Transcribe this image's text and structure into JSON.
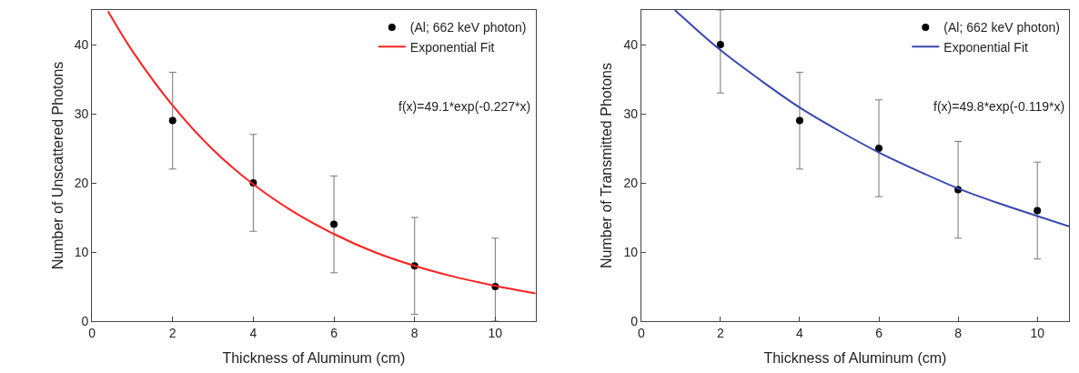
{
  "chart_data": [
    {
      "type": "scatter",
      "xlabel": "Thickness of Aluminum (cm)",
      "ylabel": "Number of Unscattered Photons",
      "xlim": [
        0,
        11
      ],
      "ylim": [
        0,
        45
      ],
      "xticks": [
        0,
        2,
        4,
        6,
        8,
        10
      ],
      "yticks": [
        0,
        10,
        20,
        30,
        40
      ],
      "legend": "top right",
      "annotations": [
        "f(x)=49.1*exp(-0.227*x)"
      ],
      "series": [
        {
          "name": "(Al; 662 keV photon)",
          "marker": "circle",
          "color": "#000000",
          "x": [
            2,
            4,
            6,
            8,
            10
          ],
          "values": [
            29,
            20,
            14,
            8,
            5
          ],
          "errors": [
            7,
            7,
            7,
            7,
            [
              0,
              12
            ]
          ]
        },
        {
          "name": "Exponential Fit",
          "type": "line",
          "color": "#ff2020",
          "x": [
            0.4,
            1,
            2,
            3,
            4,
            5,
            6,
            7,
            8,
            9,
            10,
            11
          ],
          "values": [
            44.8,
            39.1,
            31.2,
            24.8,
            19.8,
            15.8,
            12.6,
            10.0,
            8.0,
            6.4,
            5.1,
            4.0
          ]
        }
      ]
    },
    {
      "type": "scatter",
      "xlabel": "Thickness of Aluminum (cm)",
      "ylabel": "Number of Transmitted Photons",
      "xlim": [
        0,
        10.8
      ],
      "ylim": [
        0,
        45
      ],
      "xticks": [
        0,
        2,
        4,
        6,
        8,
        10
      ],
      "yticks": [
        0,
        10,
        20,
        30,
        40
      ],
      "legend": "top right",
      "annotations": [
        "f(x)=49.8*exp(-0.119*x)"
      ],
      "series": [
        {
          "name": "(Al; 662 keV photon)",
          "marker": "circle",
          "color": "#000000",
          "x": [
            2,
            4,
            6,
            8,
            10
          ],
          "values": [
            40,
            29,
            25,
            19,
            16
          ],
          "errors": [
            [
              33,
              45
            ],
            7,
            7,
            7,
            7
          ]
        },
        {
          "name": "Exponential Fit",
          "type": "line",
          "color": "#3848b0",
          "x": [
            0.85,
            1,
            2,
            3,
            4,
            5,
            6,
            7,
            8,
            9,
            10,
            10.8
          ],
          "values": [
            45.0,
            44.2,
            39.2,
            34.9,
            30.9,
            27.5,
            24.4,
            21.7,
            19.2,
            17.1,
            15.2,
            13.7
          ]
        }
      ]
    }
  ]
}
